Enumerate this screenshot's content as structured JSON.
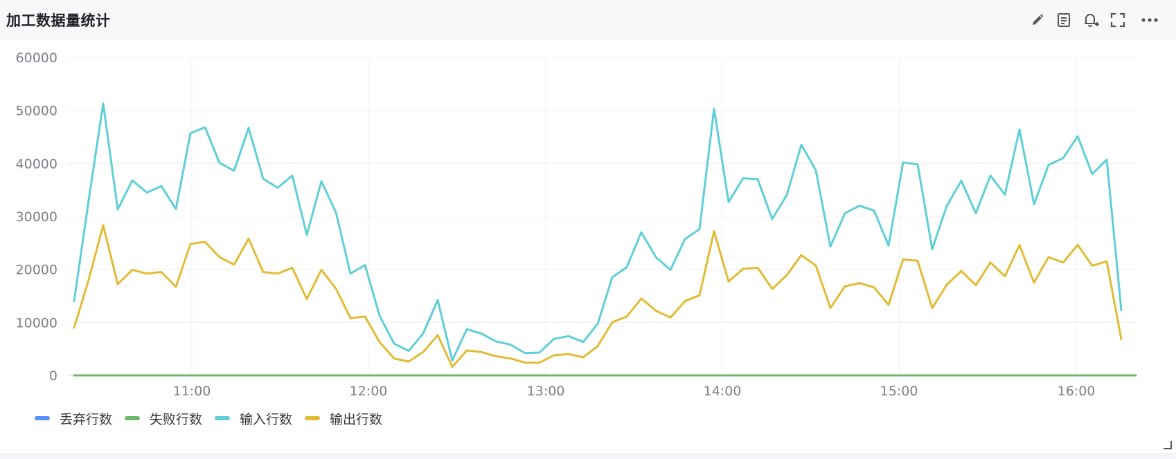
{
  "panel": {
    "title": "加工数据量统计",
    "tools": [
      "edit-icon",
      "document-icon",
      "bell-add-icon",
      "fullscreen-icon",
      "more-icon"
    ]
  },
  "chart_data": {
    "type": "line",
    "x_ticks": [
      "11:00",
      "12:00",
      "13:00",
      "14:00",
      "15:00",
      "16:00"
    ],
    "y_ticks": [
      0,
      10000,
      20000,
      30000,
      40000,
      50000,
      60000
    ],
    "ylim": [
      0,
      60000
    ],
    "grid": true,
    "legend_position": "bottom-left",
    "series": [
      {
        "name": "丢弃行数",
        "color": "#5b8ff9",
        "values": [
          0,
          0,
          0,
          0,
          0,
          0,
          0,
          0,
          0,
          0,
          0,
          0,
          0,
          0,
          0,
          0,
          0,
          0,
          0,
          0,
          0,
          0,
          0,
          0,
          0,
          0,
          0,
          0,
          0,
          0,
          0,
          0,
          0,
          0,
          0,
          0,
          0,
          0,
          0,
          0,
          0,
          0,
          0,
          0,
          0,
          0,
          0,
          0,
          0,
          0,
          0,
          0,
          0,
          0,
          0,
          0,
          0,
          0,
          0,
          0,
          0,
          0,
          0,
          0,
          0,
          0,
          0,
          0,
          0,
          0,
          0,
          0,
          0,
          0
        ]
      },
      {
        "name": "失败行数",
        "color": "#6dbb6a",
        "values": [
          0,
          0,
          0,
          0,
          0,
          0,
          0,
          0,
          0,
          0,
          0,
          0,
          0,
          0,
          0,
          0,
          0,
          0,
          0,
          0,
          0,
          0,
          0,
          0,
          0,
          0,
          0,
          0,
          0,
          0,
          0,
          0,
          0,
          0,
          0,
          0,
          0,
          0,
          0,
          0,
          0,
          0,
          0,
          0,
          0,
          0,
          0,
          0,
          0,
          0,
          0,
          0,
          0,
          0,
          0,
          0,
          0,
          0,
          0,
          0,
          0,
          0,
          0,
          0,
          0,
          0,
          0,
          0,
          0,
          0,
          0,
          0,
          0,
          0
        ]
      },
      {
        "name": "输入行数",
        "color": "#5ecfd6",
        "values": [
          14000,
          33000,
          51300,
          31300,
          36800,
          34500,
          35700,
          31400,
          45700,
          46800,
          40100,
          38600,
          46700,
          37100,
          35400,
          37700,
          26500,
          36600,
          30800,
          19200,
          20800,
          11300,
          6000,
          4600,
          7900,
          14200,
          2800,
          8700,
          7900,
          6400,
          5800,
          4200,
          4300,
          6900,
          7400,
          6300,
          9700,
          18500,
          20400,
          27000,
          22300,
          19900,
          25700,
          27600,
          50300,
          32700,
          37200,
          37000,
          29500,
          34000,
          43500,
          38700,
          24300,
          30600,
          32000,
          31100,
          24500,
          40200,
          39800,
          23800,
          32000,
          36700,
          30600,
          37700,
          34100,
          46400,
          32300,
          39700,
          41000,
          45100,
          38000,
          40700,
          12300
        ]
      },
      {
        "name": "输出行数",
        "color": "#e2bb35",
        "values": [
          9000,
          18000,
          28300,
          17200,
          19900,
          19200,
          19500,
          16700,
          24800,
          25200,
          22300,
          20900,
          25800,
          19500,
          19200,
          20300,
          14400,
          19900,
          16400,
          10800,
          11100,
          6300,
          3200,
          2600,
          4400,
          7600,
          1600,
          4700,
          4400,
          3600,
          3200,
          2400,
          2400,
          3800,
          4000,
          3400,
          5500,
          10000,
          11100,
          14500,
          12200,
          10900,
          14000,
          15100,
          27200,
          17700,
          20100,
          20300,
          16300,
          18900,
          22700,
          20700,
          12700,
          16800,
          17400,
          16600,
          13300,
          21900,
          21600,
          12700,
          17100,
          19700,
          17000,
          21300,
          18700,
          24600,
          17500,
          22300,
          21300,
          24600,
          20700,
          21500,
          6800
        ]
      }
    ]
  }
}
